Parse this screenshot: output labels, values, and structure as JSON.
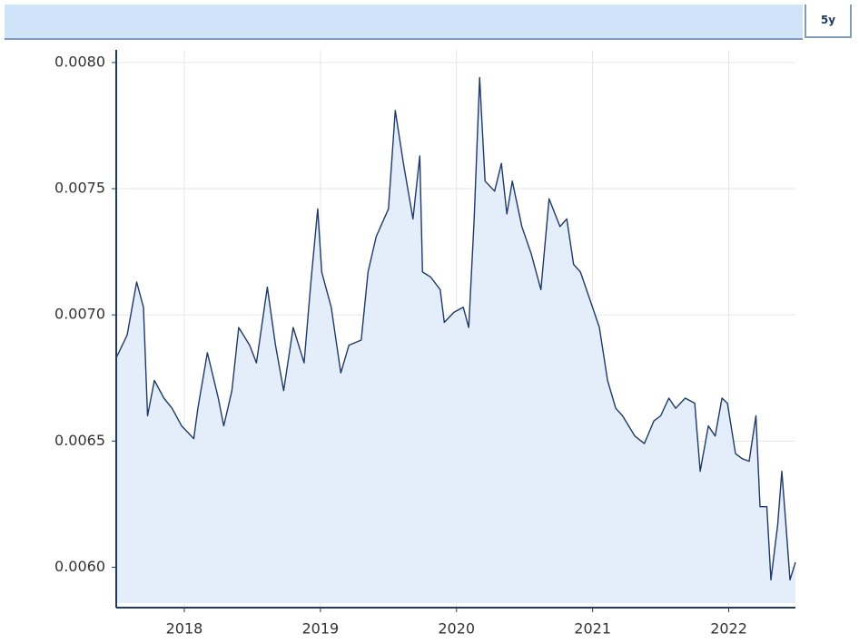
{
  "range_button": "5y",
  "chart_data": {
    "type": "area",
    "color": "#1f3a68",
    "fill": "#e3eefa",
    "grid": true,
    "xlim": [
      2017.5,
      2022.49
    ],
    "xticks": [
      2018,
      2019,
      2020,
      2021,
      2022
    ],
    "ylim": [
      0.00584,
      0.00805
    ],
    "yticks": [
      {
        "value": 0.008,
        "label": "0.0080"
      },
      0.0075,
      {
        "value": 0.007,
        "label": "0.0070"
      },
      0.0065,
      {
        "value": 0.006,
        "label": "0.0060"
      }
    ],
    "x": [
      2017.5,
      2017.58,
      2017.65,
      2017.7,
      2017.73,
      2017.78,
      2017.85,
      2017.91,
      2017.98,
      2018.07,
      2018.1,
      2018.17,
      2018.25,
      2018.29,
      2018.35,
      2018.4,
      2018.48,
      2018.53,
      2018.61,
      2018.67,
      2018.73,
      2018.8,
      2018.88,
      2018.93,
      2018.98,
      2019.01,
      2019.08,
      2019.15,
      2019.21,
      2019.3,
      2019.35,
      2019.41,
      2019.5,
      2019.55,
      2019.61,
      2019.68,
      2019.73,
      2019.75,
      2019.81,
      2019.88,
      2019.91,
      2019.98,
      2020.05,
      2020.09,
      2020.13,
      2020.17,
      2020.21,
      2020.28,
      2020.33,
      2020.37,
      2020.41,
      2020.48,
      2020.55,
      2020.62,
      2020.68,
      2020.76,
      2020.81,
      2020.86,
      2020.91,
      2020.98,
      2021.05,
      2021.11,
      2021.17,
      2021.22,
      2021.31,
      2021.38,
      2021.45,
      2021.5,
      2021.56,
      2021.61,
      2021.68,
      2021.75,
      2021.79,
      2021.85,
      2021.9,
      2021.95,
      2021.99,
      2022.05,
      2022.1,
      2022.15,
      2022.2,
      2022.23,
      2022.28,
      2022.31,
      2022.36,
      2022.39,
      2022.42,
      2022.45,
      2022.49
    ],
    "values": [
      0.00683,
      0.00692,
      0.00713,
      0.00703,
      0.0066,
      0.00674,
      0.00667,
      0.00663,
      0.00656,
      0.00651,
      0.00663,
      0.00685,
      0.00667,
      0.00656,
      0.0067,
      0.00695,
      0.00688,
      0.00681,
      0.00711,
      0.00688,
      0.0067,
      0.00695,
      0.00681,
      0.00713,
      0.00742,
      0.00717,
      0.00703,
      0.00677,
      0.00688,
      0.0069,
      0.00717,
      0.00731,
      0.00742,
      0.00781,
      0.0076,
      0.00738,
      0.00763,
      0.00717,
      0.00715,
      0.0071,
      0.00697,
      0.00701,
      0.00703,
      0.00695,
      0.00738,
      0.00794,
      0.00753,
      0.00749,
      0.0076,
      0.0074,
      0.00753,
      0.00735,
      0.00724,
      0.0071,
      0.00746,
      0.00735,
      0.00738,
      0.0072,
      0.00717,
      0.00706,
      0.00695,
      0.00674,
      0.00663,
      0.0066,
      0.00652,
      0.00649,
      0.00658,
      0.0066,
      0.00667,
      0.00663,
      0.00667,
      0.00665,
      0.00638,
      0.00656,
      0.00652,
      0.00667,
      0.00665,
      0.00645,
      0.00643,
      0.00642,
      0.0066,
      0.00624,
      0.00624,
      0.00595,
      0.00617,
      0.00638,
      0.00617,
      0.00595,
      0.00602
    ]
  }
}
